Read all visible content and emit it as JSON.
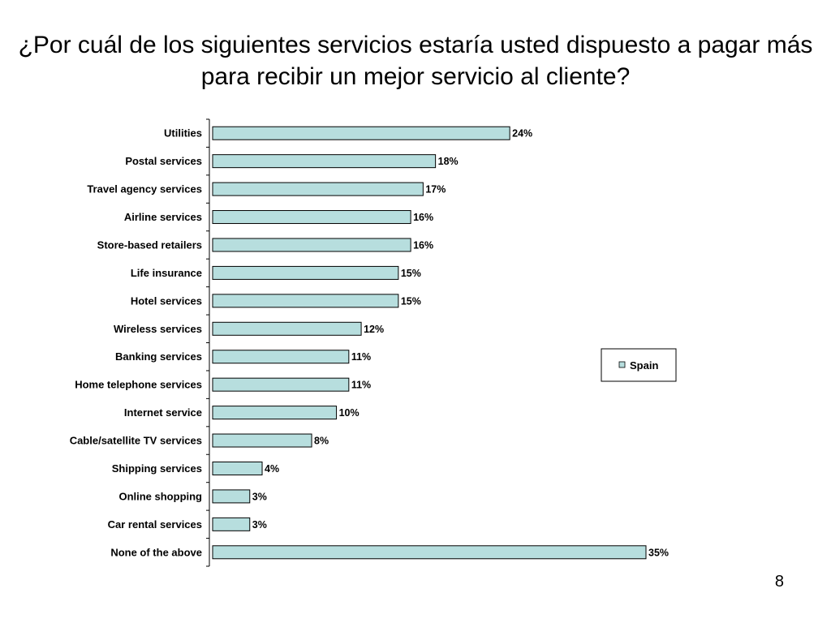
{
  "slide": {
    "title": "¿Por cuál de los siguientes servicios estaría usted dispuesto a pagar más para recibir un mejor servicio al cliente?",
    "page_number": "8"
  },
  "chart_data": {
    "type": "bar",
    "orientation": "horizontal",
    "title": "¿Por cuál de los siguientes servicios estaría usted dispuesto a pagar más para recibir un mejor servicio al cliente?",
    "categories": [
      "Utilities",
      "Postal services",
      "Travel agency services",
      "Airline services",
      "Store-based retailers",
      "Life insurance",
      "Hotel services",
      "Wireless services",
      "Banking services",
      "Home telephone services",
      "Internet service",
      "Cable/satellite TV services",
      "Shipping services",
      "Online shopping",
      "Car rental services",
      "None of the above"
    ],
    "series": [
      {
        "name": "Spain",
        "values": [
          24,
          18,
          17,
          16,
          16,
          15,
          15,
          12,
          11,
          11,
          10,
          8,
          4,
          3,
          3,
          35
        ],
        "labels": [
          "24%",
          "18%",
          "17%",
          "16%",
          "16%",
          "15%",
          "15%",
          "12%",
          "11%",
          "11%",
          "10%",
          "8%",
          "4%",
          "3%",
          "3%",
          "35%"
        ]
      }
    ],
    "unit": "%",
    "xlim": [
      0,
      35
    ],
    "grid": false,
    "legend_position": "right",
    "colors": {
      "bar_fill": "#b7dede",
      "bar_stroke": "#000000",
      "axis": "#000000"
    }
  }
}
